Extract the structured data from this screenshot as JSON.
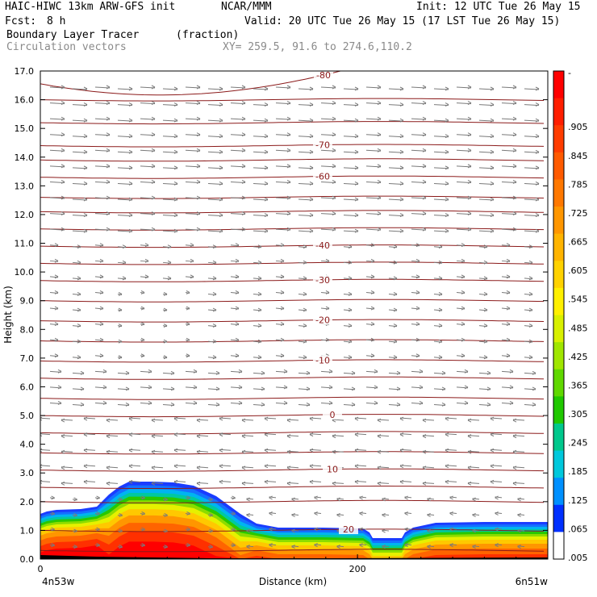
{
  "header": {
    "model": "HAIC-HIWC 13km ARW-GFS init",
    "center": "NCAR/MMM",
    "init": "Init: 12 UTC Tue 26 May 15",
    "fcst_label": "Fcst:",
    "fcst_value": "8 h",
    "valid": "Valid: 20 UTC Tue 26 May 15 (17 LST Tue 26 May 15)",
    "field": "Boundary Layer Tracer",
    "units": "(fraction)",
    "vectors": "Circulation vectors",
    "xy": "XY= 259.5, 91.6 to 274.6,110.2"
  },
  "colors": {
    "frame": "#000000",
    "contour": "#8b1a1a",
    "vector": "#7a7a7a",
    "text_gray": "#8a8a8a"
  },
  "chart_data": {
    "type": "heatmap",
    "ylabel": "Height (km)",
    "xlabel": "Distance (km)",
    "ylim": [
      0,
      17
    ],
    "xlim": [
      0,
      320
    ],
    "yticks": [
      "0.0",
      "1.0",
      "2.0",
      "3.0",
      "4.0",
      "5.0",
      "6.0",
      "7.0",
      "8.0",
      "9.0",
      "10.0",
      "11.0",
      "12.0",
      "13.0",
      "14.0",
      "15.0",
      "16.0",
      "17.0"
    ],
    "xticks": [
      {
        "value": 0,
        "label": "0"
      },
      {
        "value": 200,
        "label": "200"
      }
    ],
    "left_endpoint": "4n53w",
    "right_endpoint": "6n51w",
    "colorbar_labels": [
      "-",
      ".905",
      ".845",
      ".785",
      ".725",
      ".665",
      ".605",
      ".545",
      ".485",
      ".425",
      ".365",
      ".305",
      ".245",
      ".185",
      ".125",
      ".065",
      ".005"
    ],
    "colorbar_colors": [
      "#ff0000",
      "#ff1e00",
      "#ff3c00",
      "#ff5a00",
      "#ff7800",
      "#ff9600",
      "#ffb400",
      "#ffd200",
      "#fff000",
      "#d8f000",
      "#a0e600",
      "#60d800",
      "#20c800",
      "#00c88c",
      "#00c8dc",
      "#0090ff",
      "#0030ff",
      "#ffffff"
    ],
    "temperature_contours": [
      {
        "label": "-80",
        "height": 16.6
      },
      {
        "label": "-70",
        "height": 14.4
      },
      {
        "label": "-60",
        "height": 13.3
      },
      {
        "label": "-40",
        "height": 10.9
      },
      {
        "label": "-30",
        "height": 9.7
      },
      {
        "label": "-20",
        "height": 8.3
      },
      {
        "label": "-10",
        "height": 6.9
      },
      {
        "label": "0",
        "height": 5.0
      },
      {
        "label": "10",
        "height": 3.1
      },
      {
        "label": "20",
        "height": 1.0
      }
    ],
    "other_contour_heights": [
      16.0,
      15.2,
      13.9,
      12.6,
      12.1,
      11.5,
      10.3,
      9.0,
      7.6,
      6.3,
      5.6,
      4.4,
      3.7,
      2.5,
      2.0,
      0.3
    ]
  }
}
